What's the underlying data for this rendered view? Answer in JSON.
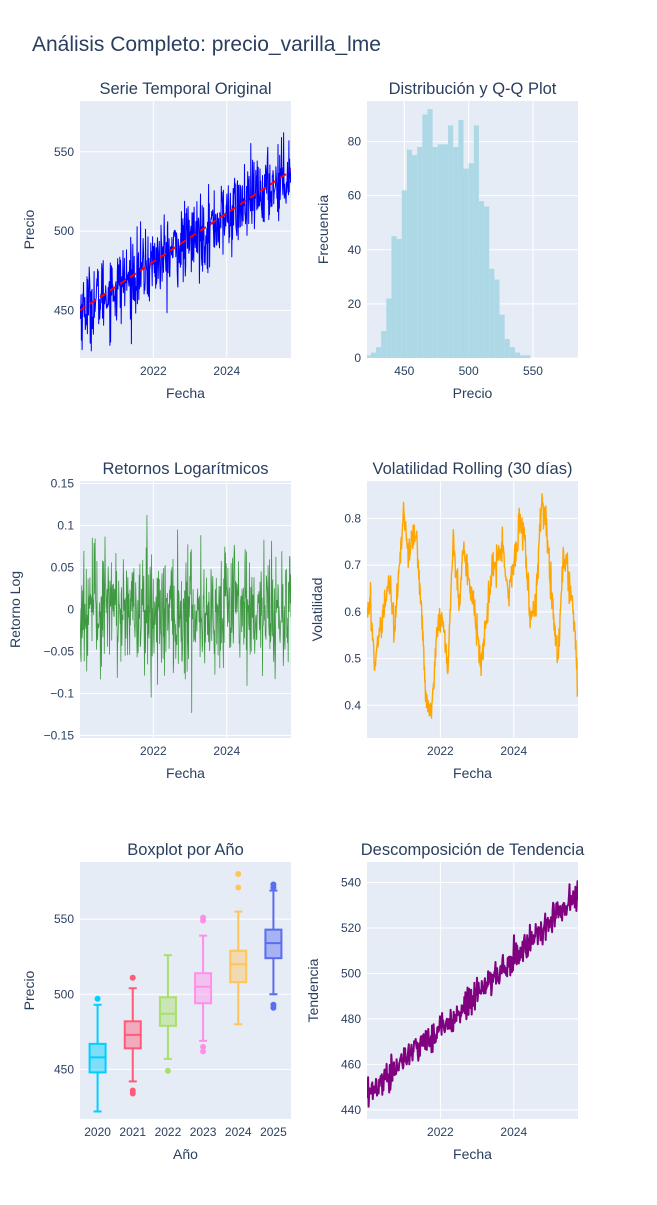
{
  "page": {
    "title": "Análisis Completo: precio_varilla_lme"
  },
  "colors": {
    "plot_bg": "#E5ECF6",
    "grid": "#ffffff",
    "text": "#2a3f5f",
    "series_blue": "#0000ff",
    "trend_red": "#ff0000",
    "hist_fill": "#add8e6",
    "returns_green": "#228b22",
    "volatility_orange": "#ffa500",
    "decomp_purple": "#800080",
    "box_colors": [
      "#00cfff",
      "#ff5a7a",
      "#a8e06a",
      "#ff8fe8",
      "#ffc45a",
      "#5a6cf0"
    ]
  },
  "chart_data": [
    {
      "id": "serie-temporal",
      "type": "line",
      "title": "Serie Temporal Original",
      "xlabel": "Fecha",
      "ylabel": "Precio",
      "xlim": [
        2020.0,
        2025.75
      ],
      "ylim": [
        420,
        582
      ],
      "xticks": [
        2022,
        2024
      ],
      "xtick_labels": [
        "2022",
        "2024"
      ],
      "yticks": [
        450,
        500,
        550
      ],
      "ytick_labels": [
        "450",
        "500",
        "550"
      ],
      "series": [
        {
          "kind": "noisy-line",
          "x_range": [
            2020.0,
            2025.75
          ],
          "n_points": 600,
          "y_anchor_x": [
            2020.0,
            2021.0,
            2022.0,
            2023.0,
            2024.0,
            2025.0,
            2025.75
          ],
          "y_anchor": [
            450,
            465,
            480,
            494,
            509,
            525,
            538
          ],
          "noise": 16,
          "min": 423,
          "max": 580,
          "color": "#0000ff"
        },
        {
          "kind": "trend-line",
          "x": [
            2020.0,
            2025.75
          ],
          "y": [
            450,
            538
          ],
          "color": "#ff0000"
        }
      ]
    },
    {
      "id": "distribucion",
      "type": "bar",
      "title": "Distribución y Q-Q Plot",
      "xlabel": "Precio",
      "ylabel": "Frecuencia",
      "xlim": [
        421,
        585
      ],
      "ylim": [
        0,
        95
      ],
      "xticks": [
        450,
        500,
        550
      ],
      "xtick_labels": [
        "450",
        "500",
        "550"
      ],
      "yticks": [
        0,
        20,
        40,
        60,
        80
      ],
      "ytick_labels": [
        "0",
        "20",
        "40",
        "60",
        "80"
      ],
      "bin_start": 420,
      "bin_width": 4,
      "values": [
        1,
        2,
        4,
        10,
        22,
        45,
        44,
        62,
        77,
        75,
        78,
        90,
        92,
        78,
        79,
        79,
        86,
        78,
        88,
        70,
        72,
        86,
        58,
        56,
        33,
        29,
        16,
        7,
        4,
        2,
        1,
        1
      ]
    },
    {
      "id": "retornos",
      "type": "line",
      "title": "Retornos Logarítmicos",
      "xlabel": "Fecha",
      "ylabel": "Retorno Log",
      "xlim": [
        2020.0,
        2025.75
      ],
      "ylim": [
        -0.153,
        0.153
      ],
      "xticks": [
        2022,
        2024
      ],
      "xtick_labels": [
        "2022",
        "2024"
      ],
      "yticks": [
        -0.15,
        -0.1,
        -0.05,
        0,
        0.05,
        0.1,
        0.15
      ],
      "ytick_labels": [
        "−0.15",
        "−0.1",
        "−0.05",
        "0",
        "0.05",
        "0.1",
        "0.15"
      ],
      "series": [
        {
          "kind": "returns",
          "x_range": [
            2020.0,
            2025.75
          ],
          "n_points": 600,
          "mean": 0,
          "std": 0.038,
          "min": -0.137,
          "max": 0.138,
          "color": "#228b22"
        }
      ]
    },
    {
      "id": "volatilidad",
      "type": "line",
      "title": "Volatilidad Rolling (30 días)",
      "xlabel": "Fecha",
      "ylabel": "Volatilidad",
      "xlim": [
        2020.0,
        2025.75
      ],
      "ylim": [
        0.33,
        0.88
      ],
      "xticks": [
        2022,
        2024
      ],
      "xtick_labels": [
        "2022",
        "2024"
      ],
      "yticks": [
        0.4,
        0.5,
        0.6,
        0.7,
        0.8
      ],
      "ytick_labels": [
        "0.4",
        "0.5",
        "0.6",
        "0.7",
        "0.8"
      ],
      "series": [
        {
          "kind": "volatility",
          "x": [
            2020.0,
            2020.1,
            2020.2,
            2020.3,
            2020.45,
            2020.6,
            2020.75,
            2020.9,
            2021.0,
            2021.15,
            2021.3,
            2021.45,
            2021.6,
            2021.75,
            2021.9,
            2022.05,
            2022.2,
            2022.35,
            2022.5,
            2022.65,
            2022.8,
            2022.95,
            2023.1,
            2023.25,
            2023.4,
            2023.55,
            2023.7,
            2023.85,
            2024.0,
            2024.15,
            2024.3,
            2024.45,
            2024.6,
            2024.75,
            2024.9,
            2025.05,
            2025.2,
            2025.35,
            2025.5,
            2025.65,
            2025.75
          ],
          "y": [
            0.6,
            0.63,
            0.47,
            0.55,
            0.6,
            0.68,
            0.55,
            0.72,
            0.82,
            0.72,
            0.78,
            0.65,
            0.42,
            0.37,
            0.56,
            0.6,
            0.48,
            0.75,
            0.62,
            0.74,
            0.66,
            0.6,
            0.48,
            0.58,
            0.68,
            0.72,
            0.75,
            0.64,
            0.7,
            0.8,
            0.76,
            0.58,
            0.62,
            0.83,
            0.78,
            0.62,
            0.5,
            0.72,
            0.68,
            0.58,
            0.42
          ],
          "noise": 0.05,
          "n_points": 600,
          "color": "#ffa500"
        }
      ]
    },
    {
      "id": "boxplot",
      "type": "box",
      "title": "Boxplot por Año",
      "xlabel": "Año",
      "ylabel": "Precio",
      "ylim": [
        417,
        588
      ],
      "categories": [
        "2020",
        "2021",
        "2022",
        "2023",
        "2024",
        "2025"
      ],
      "yticks": [
        450,
        500,
        550
      ],
      "ytick_labels": [
        "450",
        "500",
        "550"
      ],
      "boxes": [
        {
          "min": 422,
          "q1": 448,
          "median": 458,
          "q3": 467,
          "max": 493,
          "outliers": [
            497
          ]
        },
        {
          "min": 442,
          "q1": 464,
          "median": 473,
          "q3": 482,
          "max": 504,
          "outliers": [
            511,
            436,
            434
          ]
        },
        {
          "min": 457,
          "q1": 479,
          "median": 487,
          "q3": 498,
          "max": 526,
          "outliers": [
            449
          ]
        },
        {
          "min": 469,
          "q1": 494,
          "median": 505,
          "q3": 514,
          "max": 539,
          "outliers": [
            551,
            549,
            465,
            462
          ]
        },
        {
          "min": 480,
          "q1": 508,
          "median": 520,
          "q3": 529,
          "max": 555,
          "outliers": [
            580,
            571
          ]
        },
        {
          "min": 500,
          "q1": 524,
          "median": 534,
          "q3": 543,
          "max": 569,
          "outliers": [
            573,
            571,
            493,
            491
          ]
        }
      ]
    },
    {
      "id": "tendencia",
      "type": "line",
      "title": "Descomposición de Tendencia",
      "xlabel": "Fecha",
      "ylabel": "Tendencia",
      "xlim": [
        2020.0,
        2025.75
      ],
      "ylim": [
        436,
        549
      ],
      "xticks": [
        2022,
        2024
      ],
      "xtick_labels": [
        "2022",
        "2024"
      ],
      "yticks": [
        440,
        460,
        480,
        500,
        520,
        540
      ],
      "ytick_labels": [
        "440",
        "460",
        "480",
        "500",
        "520",
        "540"
      ],
      "series": [
        {
          "kind": "noisy-line",
          "x_range": [
            2020.0,
            2025.75
          ],
          "n_points": 400,
          "y_anchor_x": [
            2020.0,
            2021.0,
            2022.0,
            2023.0,
            2024.0,
            2025.0,
            2025.75
          ],
          "y_anchor": [
            446,
            462,
            476,
            491,
            506,
            523,
            535
          ],
          "noise": 4.5,
          "min": 441,
          "max": 546,
          "color": "#800080"
        }
      ]
    }
  ]
}
